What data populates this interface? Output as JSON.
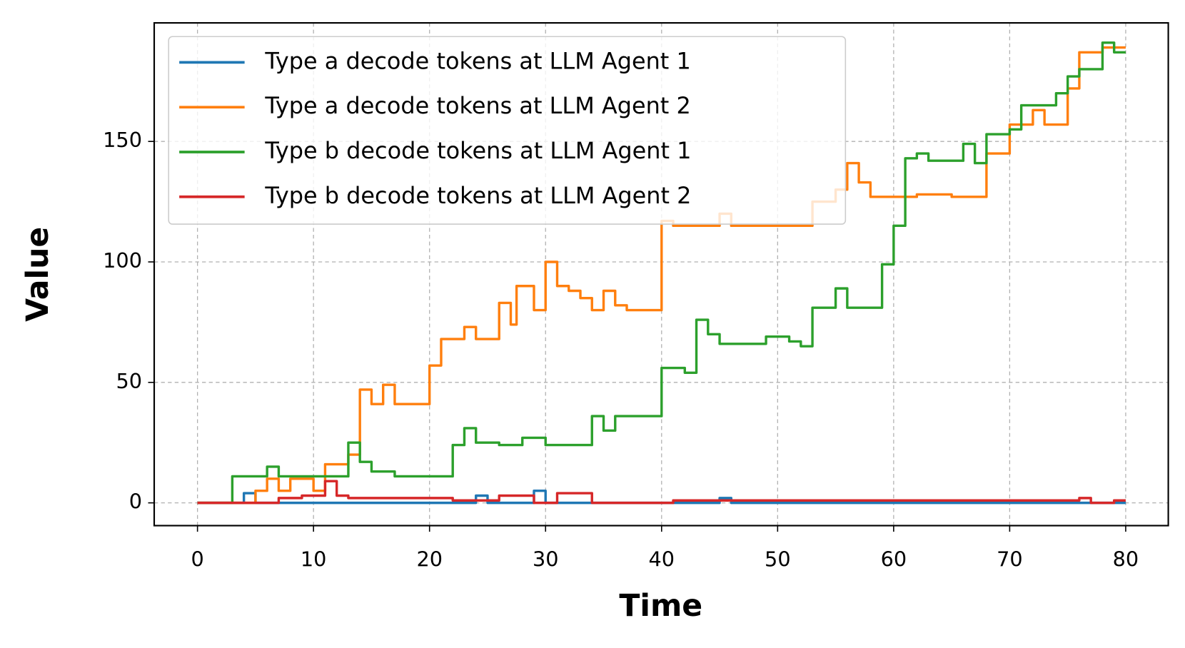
{
  "chart_data": {
    "type": "line",
    "xlabel": "Time",
    "ylabel": "Value",
    "xlim": [
      -3.73,
      83.67
    ],
    "ylim": [
      -9.45,
      199.2
    ],
    "xticks": [
      0,
      10,
      20,
      30,
      40,
      50,
      60,
      70,
      80
    ],
    "yticks": [
      0,
      50,
      100,
      150
    ],
    "grid": true,
    "legend": "upper left",
    "series": [
      {
        "name": "Type a decode tokens at LLM Agent 1",
        "color": "#1f77b4",
        "x": [
          0,
          4,
          4,
          5,
          5,
          24,
          24,
          25,
          25,
          29,
          29,
          30,
          30,
          45,
          45,
          46,
          46,
          80
        ],
        "values": [
          0,
          0,
          4,
          4,
          0,
          0,
          3,
          3,
          0,
          0,
          5,
          5,
          0,
          0,
          2,
          2,
          0,
          0
        ]
      },
      {
        "name": "Type a decode tokens at LLM Agent 2",
        "color": "#ff7f0e",
        "x": [
          0,
          5,
          5,
          6,
          6,
          7,
          7,
          8,
          8,
          10,
          10,
          11,
          11,
          13,
          13,
          14,
          14,
          15,
          15,
          16,
          16,
          17,
          17,
          20,
          20,
          21,
          21,
          23,
          23,
          24,
          24,
          26,
          26,
          27,
          27,
          27.5,
          27.5,
          29,
          29,
          30,
          30,
          31,
          31,
          32,
          32,
          33,
          33,
          34,
          34,
          35,
          35,
          36,
          36,
          37,
          37,
          40,
          40,
          41,
          41,
          45,
          45,
          46,
          46,
          53,
          53,
          55,
          55,
          56,
          56,
          57,
          57,
          58,
          58,
          62,
          62,
          65,
          65,
          68,
          68,
          70,
          70,
          72,
          72,
          73,
          73,
          75,
          75,
          76,
          76,
          78,
          78,
          80
        ],
        "values": [
          0,
          0,
          5,
          5,
          10,
          10,
          5,
          5,
          10,
          10,
          5,
          5,
          16,
          16,
          20,
          20,
          47,
          47,
          41,
          41,
          49,
          49,
          41,
          41,
          57,
          57,
          68,
          68,
          73,
          73,
          68,
          68,
          83,
          83,
          74,
          74,
          90,
          90,
          80,
          80,
          100,
          100,
          90,
          90,
          88,
          88,
          85,
          85,
          80,
          80,
          88,
          88,
          82,
          82,
          80,
          80,
          117,
          117,
          115,
          115,
          120,
          120,
          115,
          115,
          125,
          125,
          130,
          130,
          141,
          141,
          133,
          133,
          127,
          127,
          128,
          128,
          127,
          127,
          145,
          145,
          157,
          157,
          163,
          163,
          157,
          157,
          172,
          172,
          187,
          187,
          189,
          189
        ]
      },
      {
        "name": "Type b decode tokens at LLM Agent 1",
        "color": "#2ca02c",
        "x": [
          0,
          3,
          3,
          6,
          6,
          7,
          7,
          13,
          13,
          14,
          14,
          15,
          15,
          17,
          17,
          22,
          22,
          23,
          23,
          24,
          24,
          26,
          26,
          28,
          28,
          30,
          30,
          34,
          34,
          35,
          35,
          36,
          36,
          40,
          40,
          42,
          42,
          43,
          43,
          44,
          44,
          45,
          45,
          49,
          49,
          51,
          51,
          52,
          52,
          53,
          53,
          55,
          55,
          56,
          56,
          59,
          59,
          60,
          60,
          61,
          61,
          62,
          62,
          63,
          63,
          66,
          66,
          67,
          67,
          68,
          68,
          70,
          70,
          71,
          71,
          74,
          74,
          75,
          75,
          76,
          76,
          78,
          78,
          79,
          79,
          80
        ],
        "values": [
          0,
          0,
          11,
          11,
          15,
          15,
          11,
          11,
          25,
          25,
          17,
          17,
          13,
          13,
          11,
          11,
          24,
          24,
          31,
          31,
          25,
          25,
          24,
          24,
          27,
          27,
          24,
          24,
          36,
          36,
          30,
          30,
          36,
          36,
          56,
          56,
          54,
          54,
          76,
          76,
          70,
          70,
          66,
          66,
          69,
          69,
          67,
          67,
          65,
          65,
          81,
          81,
          89,
          89,
          81,
          81,
          99,
          99,
          115,
          115,
          143,
          143,
          145,
          145,
          142,
          142,
          149,
          149,
          141,
          141,
          153,
          153,
          155,
          155,
          165,
          165,
          170,
          170,
          177,
          177,
          180,
          180,
          191,
          191,
          187,
          187
        ]
      },
      {
        "name": "Type b decode tokens at LLM Agent 2",
        "color": "#d62728",
        "x": [
          0,
          7,
          7,
          9,
          9,
          11,
          11,
          12,
          12,
          13,
          13,
          22,
          22,
          26,
          26,
          29,
          29,
          31,
          31,
          34,
          34,
          41,
          41,
          76,
          76,
          77,
          77,
          79,
          79,
          80
        ],
        "values": [
          0,
          0,
          2,
          2,
          3,
          3,
          9,
          9,
          3,
          3,
          2,
          2,
          1,
          1,
          3,
          3,
          0,
          0,
          4,
          4,
          0,
          0,
          1,
          1,
          2,
          2,
          0,
          0,
          1,
          1
        ]
      }
    ]
  }
}
